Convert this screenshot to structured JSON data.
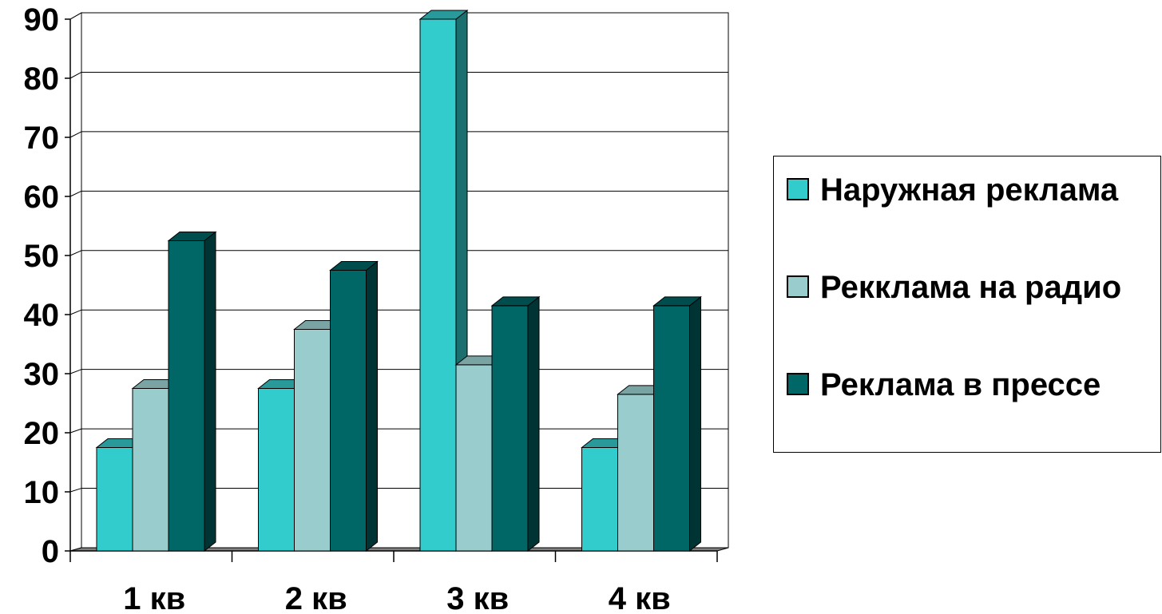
{
  "chart_data": {
    "type": "bar",
    "style": "3d-clustered-column",
    "title": "",
    "xlabel": "",
    "ylabel": "",
    "categories": [
      "1 кв",
      "2 кв",
      "3 кв",
      "4 кв"
    ],
    "ylim": [
      0,
      90
    ],
    "yticks": [
      "0",
      "10",
      "20",
      "30",
      "40",
      "50",
      "60",
      "70",
      "80",
      "90"
    ],
    "grid": true,
    "legend_position": "right",
    "series": [
      {
        "name": "Наружная реклама",
        "values": [
          17.5,
          27.5,
          90,
          17.5
        ],
        "color": "#33CCCC",
        "side_color": "#1C6F6F",
        "top_color": "#2A9999"
      },
      {
        "name": "Рекклама на радио",
        "values": [
          27.5,
          37.5,
          31.5,
          26.5
        ],
        "color": "#99CCCC",
        "side_color": "#4D6A6A",
        "top_color": "#7AA3A3"
      },
      {
        "name": "Реклама в прессе",
        "values": [
          52.5,
          47.5,
          41.5,
          41.5
        ],
        "color": "#006666",
        "side_color": "#003333",
        "top_color": "#004D4D"
      }
    ]
  }
}
